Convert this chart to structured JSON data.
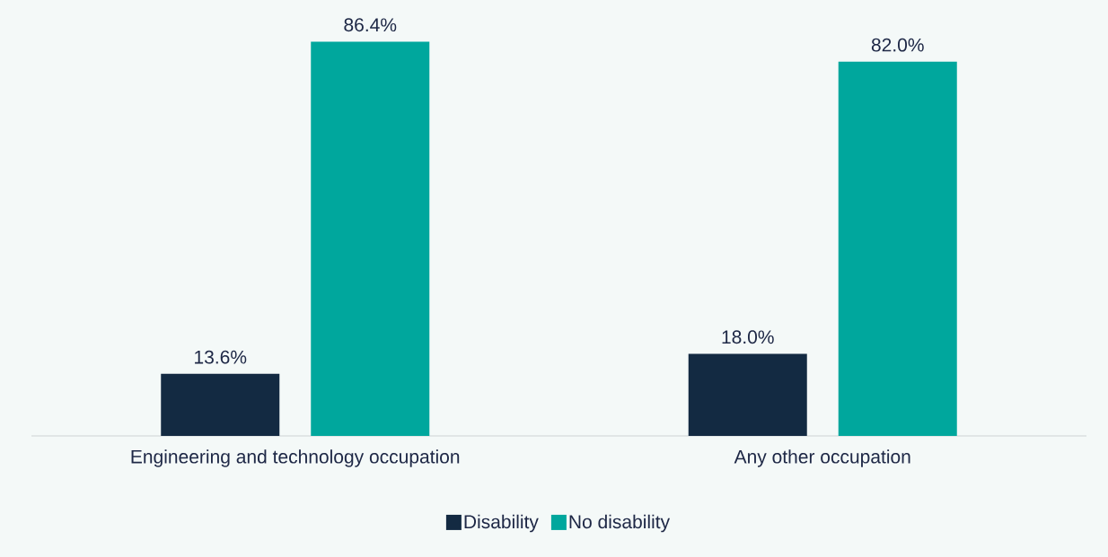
{
  "chart_data": {
    "type": "bar",
    "categories": [
      "Engineering and technology occupation",
      "Any other occupation"
    ],
    "series": [
      {
        "name": "Disability",
        "color": "#132a42",
        "values": [
          13.6,
          18.0
        ],
        "value_labels": [
          "13.6%",
          "18.0%"
        ]
      },
      {
        "name": "No disability",
        "color": "#00a79d",
        "values": [
          86.4,
          82.0
        ],
        "value_labels": [
          "86.4%",
          "82.0%"
        ]
      }
    ],
    "legend": "bottom"
  }
}
